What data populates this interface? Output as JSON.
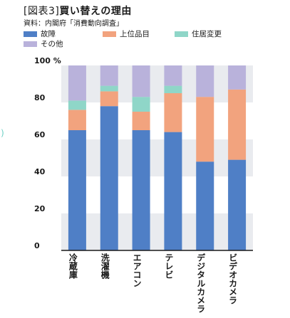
{
  "title": {
    "tag": "[図表3]",
    "text": "買い替えの理由"
  },
  "source": "資料：内閣府「消費動向調査」",
  "edge_mark": ")",
  "colors": {
    "故障": "#4f7fc6",
    "上位品目": "#f2a37e",
    "住居変更": "#8fd6c8",
    "その他": "#b9b2db",
    "band": "#e9ebef",
    "axis": "#1a1a1a"
  },
  "legend": [
    {
      "name": "故障",
      "color": "#4f7fc6"
    },
    {
      "name": "上位品目",
      "color": "#f2a37e"
    },
    {
      "name": "住居変更",
      "color": "#8fd6c8"
    },
    {
      "name": "その他",
      "color": "#b9b2db"
    }
  ],
  "chart_data": {
    "type": "bar",
    "stacked": true,
    "orientation": "vertical",
    "categories": [
      "冷蔵庫",
      "洗濯機",
      "エアコン",
      "テレビ",
      "デジタルカメラ",
      "ビデオカメラ"
    ],
    "series": [
      {
        "name": "故障",
        "values": [
          65,
          78,
          65,
          64,
          48,
          49
        ]
      },
      {
        "name": "上位品目",
        "values": [
          11,
          8,
          10,
          21,
          35,
          38
        ]
      },
      {
        "name": "住居変更",
        "values": [
          5,
          3,
          8,
          4,
          0,
          0
        ]
      },
      {
        "name": "その他",
        "values": [
          19,
          11,
          17,
          11,
          17,
          13
        ]
      }
    ],
    "yticks": [
      "0",
      "20",
      "40",
      "60",
      "80",
      "100 %"
    ],
    "ylim": [
      0,
      100
    ],
    "grid": "alternating horizontal bands",
    "legend_position": "top-left"
  }
}
